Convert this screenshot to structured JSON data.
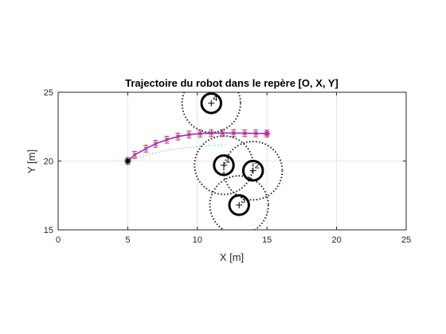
{
  "chart_data": {
    "type": "line",
    "title": "Trajectoire du robot dans le repère [O, X, Y]",
    "xlabel": "X [m]",
    "ylabel": "Y [m]",
    "xlim": [
      0,
      25
    ],
    "ylim": [
      15,
      25
    ],
    "xticks": [
      0,
      5,
      10,
      15,
      20,
      25
    ],
    "yticks": [
      15,
      20,
      25
    ],
    "xtick_labels": [
      "0",
      "5",
      "10",
      "15",
      "20",
      "25"
    ],
    "ytick_labels": [
      "15",
      "20",
      "25"
    ],
    "grid": true,
    "start_point": {
      "x": 5,
      "y": 20,
      "marker": "*"
    },
    "target_point": {
      "x": 15,
      "y": 22,
      "marker": "*"
    },
    "trajectory": {
      "color": "#9c2fbf",
      "x": [
        5,
        5.5,
        6.3,
        7.0,
        7.8,
        8.6,
        9.4,
        10.2,
        11.0,
        11.8,
        12.6,
        13.4,
        14.2,
        15.0
      ],
      "y": [
        20.0,
        20.45,
        20.9,
        21.25,
        21.55,
        21.78,
        21.92,
        22.0,
        22.02,
        22.03,
        22.03,
        22.02,
        22.01,
        22.0
      ],
      "error_bars": {
        "color": "#cc3333",
        "half_height": [
          0.25,
          0.25,
          0.25,
          0.25,
          0.25,
          0.25,
          0.25,
          0.25,
          0.25,
          0.25,
          0.25,
          0.25,
          0.25,
          0.25
        ]
      }
    },
    "reference_path": {
      "color": "#3fb4c8",
      "style": "dotted",
      "x": [
        5,
        6,
        7,
        8,
        9,
        10,
        11,
        12
      ],
      "y": [
        20.0,
        20.35,
        20.6,
        20.8,
        20.95,
        21.05,
        21.12,
        21.18
      ]
    },
    "blue_path": {
      "color": "#2b3fd6",
      "style": "dotted",
      "x": [
        10.5,
        11.5,
        12.5,
        13.5,
        14.5,
        15.0
      ],
      "y": [
        22.05,
        22.05,
        22.05,
        22.03,
        22.01,
        22.0
      ]
    },
    "obstacles": [
      {
        "label": "1",
        "x": 11.9,
        "y": 19.7,
        "radius": 0.7,
        "influence_radius": 2.1
      },
      {
        "label": "2",
        "x": 14.0,
        "y": 19.3,
        "radius": 0.7,
        "influence_radius": 2.1
      },
      {
        "label": "3",
        "x": 13.0,
        "y": 16.8,
        "radius": 0.7,
        "influence_radius": 2.1
      },
      {
        "label": "4",
        "x": 11.0,
        "y": 24.2,
        "radius": 0.7,
        "influence_radius": 2.1
      }
    ]
  }
}
